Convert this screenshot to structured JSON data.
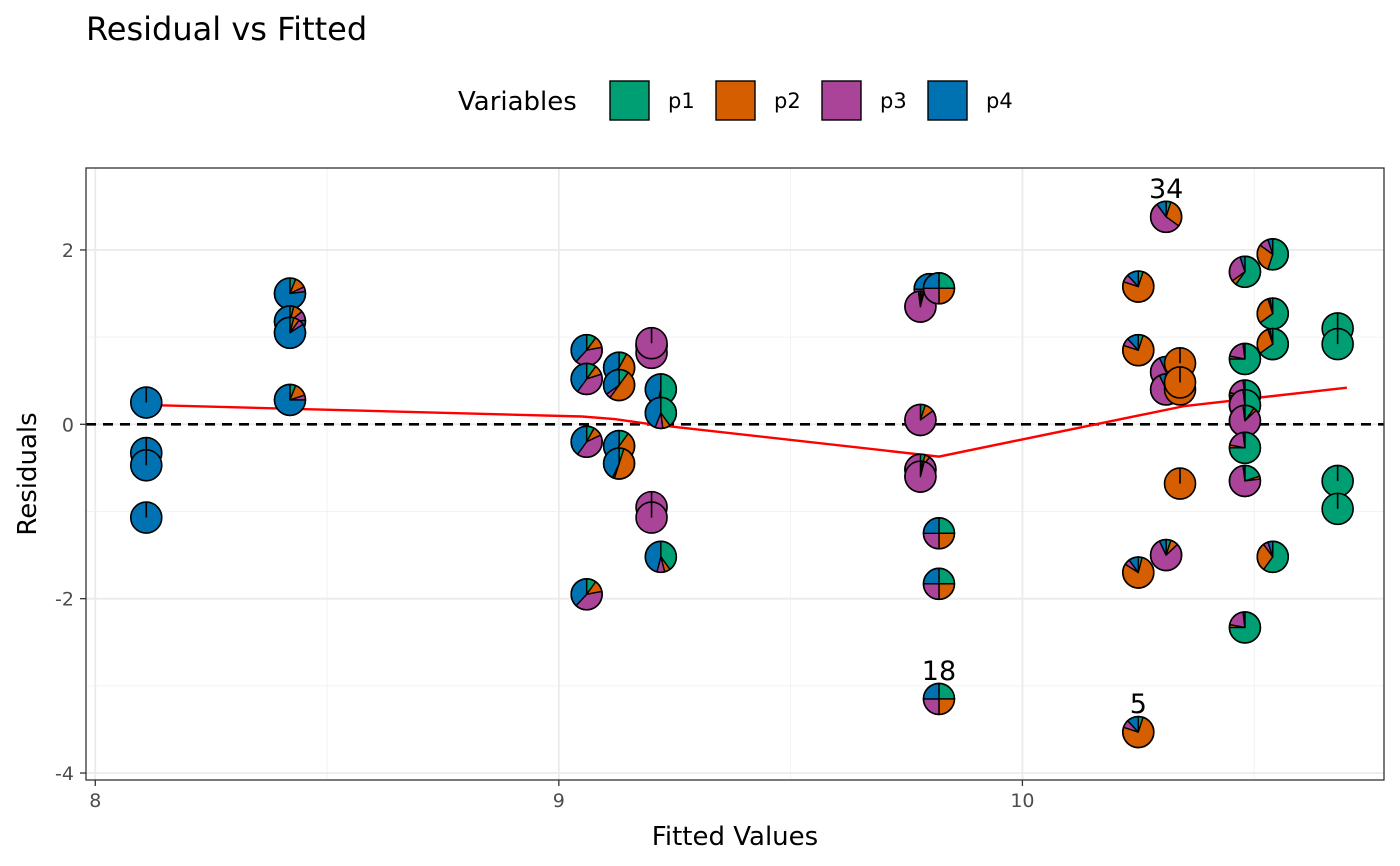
{
  "chart_data": {
    "type": "scatter",
    "title": "Residual vs Fitted",
    "xlabel": "Fitted Values",
    "ylabel": "Residuals",
    "xlim": [
      7.98,
      10.78
    ],
    "ylim": [
      -4.08,
      2.94
    ],
    "x_ticks": [
      8,
      9,
      10
    ],
    "y_ticks": [
      -4,
      -2,
      0,
      2
    ],
    "x_tick_labels": [
      "8",
      "9",
      "10"
    ],
    "y_tick_labels": [
      "-4",
      "-2",
      "0",
      "2"
    ],
    "grid": true,
    "legend": {
      "title": "Variables",
      "position": "top",
      "entries": [
        {
          "label": "p1",
          "color": "#009E73"
        },
        {
          "label": "p2",
          "color": "#D55E00"
        },
        {
          "label": "p3",
          "color": "#AA4499"
        },
        {
          "label": "p4",
          "color": "#0072B2"
        }
      ]
    },
    "reference_line": {
      "y": 0,
      "style": "dashed",
      "color": "#000000"
    },
    "smooth_line": {
      "color": "#FF0000",
      "points": [
        [
          8.12,
          0.22
        ],
        [
          9.05,
          0.09
        ],
        [
          9.12,
          0.06
        ],
        [
          9.2,
          0.0
        ],
        [
          9.82,
          -0.37
        ],
        [
          10.35,
          0.21
        ],
        [
          10.7,
          0.42
        ]
      ]
    },
    "points_note": "each point is a pie glyph with slice fractions for p1, p2, p3, p4",
    "points": [
      {
        "x": 8.11,
        "y": 0.25,
        "pie": [
          0,
          0,
          0,
          1
        ]
      },
      {
        "x": 8.11,
        "y": -0.33,
        "pie": [
          0,
          0,
          0,
          1
        ]
      },
      {
        "x": 8.11,
        "y": -0.47,
        "pie": [
          0,
          0,
          0,
          1
        ]
      },
      {
        "x": 8.11,
        "y": -1.07,
        "pie": [
          0,
          0,
          0,
          1
        ]
      },
      {
        "x": 8.42,
        "y": 1.5,
        "pie": [
          0.06,
          0.12,
          0.05,
          0.77
        ]
      },
      {
        "x": 8.42,
        "y": 1.18,
        "pie": [
          0.04,
          0.1,
          0.1,
          0.76
        ]
      },
      {
        "x": 8.42,
        "y": 1.05,
        "pie": [
          0.04,
          0.06,
          0.06,
          0.84
        ]
      },
      {
        "x": 8.42,
        "y": 0.28,
        "pie": [
          0.06,
          0.14,
          0.05,
          0.75
        ]
      },
      {
        "x": 9.06,
        "y": 0.85,
        "pie": [
          0.1,
          0.12,
          0.4,
          0.38
        ]
      },
      {
        "x": 9.06,
        "y": 0.52,
        "pie": [
          0.1,
          0.1,
          0.4,
          0.4
        ]
      },
      {
        "x": 9.06,
        "y": -0.2,
        "pie": [
          0.08,
          0.1,
          0.42,
          0.4
        ]
      },
      {
        "x": 9.06,
        "y": -1.95,
        "pie": [
          0.1,
          0.12,
          0.4,
          0.38
        ]
      },
      {
        "x": 9.13,
        "y": 0.65,
        "pie": [
          0.08,
          0.52,
          0.05,
          0.35
        ]
      },
      {
        "x": 9.13,
        "y": 0.45,
        "pie": [
          0.1,
          0.5,
          0.05,
          0.35
        ]
      },
      {
        "x": 9.13,
        "y": -0.25,
        "pie": [
          0.1,
          0.5,
          0.02,
          0.38
        ]
      },
      {
        "x": 9.13,
        "y": -0.45,
        "pie": [
          0.05,
          0.5,
          0.02,
          0.43
        ]
      },
      {
        "x": 9.2,
        "y": 0.9,
        "pie": [
          0.5,
          0,
          0.5,
          0
        ]
      },
      {
        "x": 9.2,
        "y": 0.82,
        "pie": [
          0,
          0,
          1,
          0
        ]
      },
      {
        "x": 9.2,
        "y": 0.93,
        "pie": [
          0,
          0,
          1,
          0
        ]
      },
      {
        "x": 9.22,
        "y": 0.4,
        "pie": [
          0.5,
          0.02,
          0.02,
          0.46
        ]
      },
      {
        "x": 9.22,
        "y": 0.13,
        "pie": [
          0.4,
          0.08,
          0.08,
          0.44
        ]
      },
      {
        "x": 9.2,
        "y": -0.95,
        "pie": [
          0,
          0,
          1,
          0
        ]
      },
      {
        "x": 9.2,
        "y": -1.07,
        "pie": [
          0,
          0,
          1,
          0
        ]
      },
      {
        "x": 9.22,
        "y": -1.52,
        "pie": [
          0.4,
          0.06,
          0.08,
          0.46
        ]
      },
      {
        "x": 9.8,
        "y": 1.55,
        "pie": [
          0.25,
          0.25,
          0.25,
          0.25
        ]
      },
      {
        "x": 9.78,
        "y": 1.35,
        "pie": [
          0.02,
          0.02,
          0.94,
          0.02
        ]
      },
      {
        "x": 9.78,
        "y": 0.05,
        "pie": [
          0.05,
          0.1,
          0.85,
          0
        ]
      },
      {
        "x": 9.78,
        "y": -0.52,
        "pie": [
          0.05,
          0.05,
          0.9,
          0
        ]
      },
      {
        "x": 9.78,
        "y": -0.6,
        "pie": [
          0.02,
          0.02,
          0.96,
          0
        ]
      },
      {
        "x": 9.82,
        "y": 1.56,
        "pie": [
          0.25,
          0.25,
          0.25,
          0.25
        ]
      },
      {
        "x": 9.82,
        "y": -1.25,
        "pie": [
          0.25,
          0.25,
          0.25,
          0.25
        ]
      },
      {
        "x": 9.82,
        "y": -1.83,
        "pie": [
          0.25,
          0.25,
          0.25,
          0.25
        ]
      },
      {
        "x": 9.82,
        "y": -3.15,
        "pie": [
          0.25,
          0.25,
          0.25,
          0.25
        ]
      },
      {
        "x": 10.25,
        "y": 1.58,
        "pie": [
          0.05,
          0.75,
          0.08,
          0.12
        ]
      },
      {
        "x": 10.25,
        "y": 0.85,
        "pie": [
          0.05,
          0.75,
          0.08,
          0.12
        ]
      },
      {
        "x": 10.25,
        "y": -1.7,
        "pie": [
          0.04,
          0.8,
          0.06,
          0.1
        ]
      },
      {
        "x": 10.25,
        "y": -3.53,
        "pie": [
          0.05,
          0.75,
          0.08,
          0.12
        ]
      },
      {
        "x": 10.31,
        "y": 2.38,
        "pie": [
          0.05,
          0.3,
          0.55,
          0.1
        ]
      },
      {
        "x": 10.31,
        "y": 0.6,
        "pie": [
          0.04,
          0.04,
          0.85,
          0.07
        ]
      },
      {
        "x": 10.31,
        "y": 0.4,
        "pie": [
          0.04,
          0.04,
          0.85,
          0.07
        ]
      },
      {
        "x": 10.31,
        "y": -1.5,
        "pie": [
          0.05,
          0.08,
          0.8,
          0.07
        ]
      },
      {
        "x": 10.34,
        "y": 0.7,
        "pie": [
          0,
          1,
          0,
          0
        ]
      },
      {
        "x": 10.34,
        "y": 0.4,
        "pie": [
          0,
          1,
          0,
          0
        ]
      },
      {
        "x": 10.34,
        "y": 0.48,
        "pie": [
          0,
          1,
          0,
          0
        ]
      },
      {
        "x": 10.34,
        "y": -0.68,
        "pie": [
          0,
          1,
          0,
          0
        ]
      },
      {
        "x": 10.48,
        "y": 1.75,
        "pie": [
          0.6,
          0.05,
          0.3,
          0.05
        ]
      },
      {
        "x": 10.48,
        "y": 0.75,
        "pie": [
          0.75,
          0.03,
          0.2,
          0.02
        ]
      },
      {
        "x": 10.48,
        "y": 0.33,
        "pie": [
          0.75,
          0.03,
          0.2,
          0.02
        ]
      },
      {
        "x": 10.48,
        "y": 0.22,
        "pie": [
          0.65,
          0.03,
          0.3,
          0.02
        ]
      },
      {
        "x": 10.48,
        "y": 0.04,
        "pie": [
          0.1,
          0.03,
          0.85,
          0.02
        ]
      },
      {
        "x": 10.48,
        "y": -0.27,
        "pie": [
          0.75,
          0.03,
          0.2,
          0.02
        ]
      },
      {
        "x": 10.48,
        "y": -0.65,
        "pie": [
          0.2,
          0.03,
          0.75,
          0.02
        ]
      },
      {
        "x": 10.48,
        "y": -2.33,
        "pie": [
          0.75,
          0.03,
          0.2,
          0.02
        ]
      },
      {
        "x": 10.54,
        "y": 1.95,
        "pie": [
          0.55,
          0.3,
          0.1,
          0.05
        ]
      },
      {
        "x": 10.54,
        "y": 1.27,
        "pie": [
          0.65,
          0.3,
          0.02,
          0.03
        ]
      },
      {
        "x": 10.54,
        "y": 0.92,
        "pie": [
          0.65,
          0.3,
          0.02,
          0.03
        ]
      },
      {
        "x": 10.54,
        "y": -1.52,
        "pie": [
          0.6,
          0.3,
          0.05,
          0.05
        ]
      },
      {
        "x": 10.68,
        "y": 1.1,
        "pie": [
          1,
          0,
          0,
          0
        ]
      },
      {
        "x": 10.68,
        "y": 0.92,
        "pie": [
          1,
          0,
          0,
          0
        ]
      },
      {
        "x": 10.68,
        "y": -0.65,
        "pie": [
          1,
          0,
          0,
          0
        ]
      },
      {
        "x": 10.68,
        "y": -0.97,
        "pie": [
          1,
          0,
          0,
          0
        ]
      }
    ],
    "annotations": [
      {
        "text": "34",
        "x": 10.31,
        "y": 2.38
      },
      {
        "text": "18",
        "x": 9.82,
        "y": -3.15
      },
      {
        "text": "5",
        "x": 10.25,
        "y": -3.53
      }
    ]
  }
}
